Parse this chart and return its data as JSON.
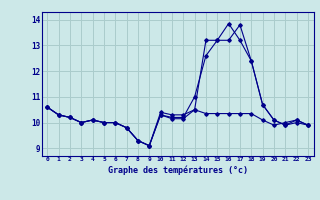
{
  "xlabel": "Graphe des températures (°c)",
  "background_color": "#cce8e8",
  "grid_color": "#aacccc",
  "line_color": "#00008b",
  "hours": [
    0,
    1,
    2,
    3,
    4,
    5,
    6,
    7,
    8,
    9,
    10,
    11,
    12,
    13,
    14,
    15,
    16,
    17,
    18,
    19,
    20,
    21,
    22,
    23
  ],
  "temp1": [
    10.6,
    10.3,
    10.2,
    10.0,
    10.1,
    10.0,
    10.0,
    9.8,
    9.3,
    9.1,
    10.3,
    10.15,
    10.15,
    10.5,
    10.35,
    10.35,
    10.35,
    10.35,
    10.35,
    10.1,
    9.9,
    10.0,
    10.1,
    9.9
  ],
  "temp2": [
    10.6,
    10.3,
    10.2,
    10.0,
    10.1,
    10.0,
    10.0,
    9.8,
    9.3,
    9.1,
    10.3,
    10.2,
    10.2,
    11.0,
    12.6,
    13.2,
    13.2,
    13.8,
    12.4,
    10.7,
    10.1,
    9.9,
    10.1,
    9.9
  ],
  "temp3": [
    10.6,
    10.3,
    10.2,
    10.0,
    10.1,
    10.0,
    10.0,
    9.8,
    9.3,
    9.1,
    10.4,
    10.3,
    10.3,
    10.5,
    13.2,
    13.2,
    13.85,
    13.2,
    12.4,
    10.7,
    10.1,
    9.9,
    10.0,
    9.9
  ],
  "ylim": [
    8.7,
    14.3
  ],
  "yticks": [
    9,
    10,
    11,
    12,
    13,
    14
  ],
  "xlim": [
    -0.5,
    23.5
  ]
}
